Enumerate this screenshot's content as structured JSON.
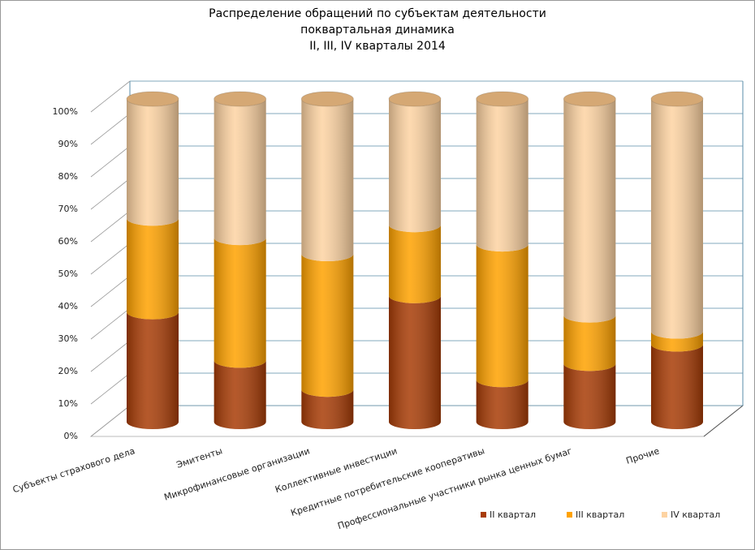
{
  "chart_data": {
    "type": "stacked_cylinder",
    "title_lines": [
      "Распределение обращений по субъектам деятельности",
      "поквартальная динамика",
      "II, III, IV кварталы 2014"
    ],
    "categories": [
      "Субъекты страхового дела",
      "Эмитенты",
      "Микрофинансовые организации",
      "Коллективные инвестиции",
      "Кредитные потребительские кооперативы",
      "Профессиональные участники рынка ценных бумаг",
      "Прочие"
    ],
    "series": [
      {
        "name": "II квартал",
        "color": "#a83c06",
        "values": [
          34,
          19,
          10,
          39,
          13,
          18,
          24
        ]
      },
      {
        "name": "III квартал",
        "color": "#ffa200",
        "values": [
          29,
          38,
          42,
          22,
          42,
          15,
          4
        ]
      },
      {
        "name": "IV квартал",
        "color": "#fdd3a2",
        "values": [
          37,
          43,
          48,
          39,
          45,
          67,
          72
        ]
      }
    ],
    "ylim": [
      0,
      100
    ],
    "yticks": [
      {
        "value": 0,
        "label": "0%"
      },
      {
        "value": 10,
        "label": "10%"
      },
      {
        "value": 20,
        "label": "20%"
      },
      {
        "value": 30,
        "label": "30%"
      },
      {
        "value": 40,
        "label": "40%"
      },
      {
        "value": 50,
        "label": "50%"
      },
      {
        "value": 60,
        "label": "60%"
      },
      {
        "value": 70,
        "label": "70%"
      },
      {
        "value": 80,
        "label": "80%"
      },
      {
        "value": 90,
        "label": "90%"
      },
      {
        "value": 100,
        "label": "100%"
      }
    ],
    "grid": true
  }
}
